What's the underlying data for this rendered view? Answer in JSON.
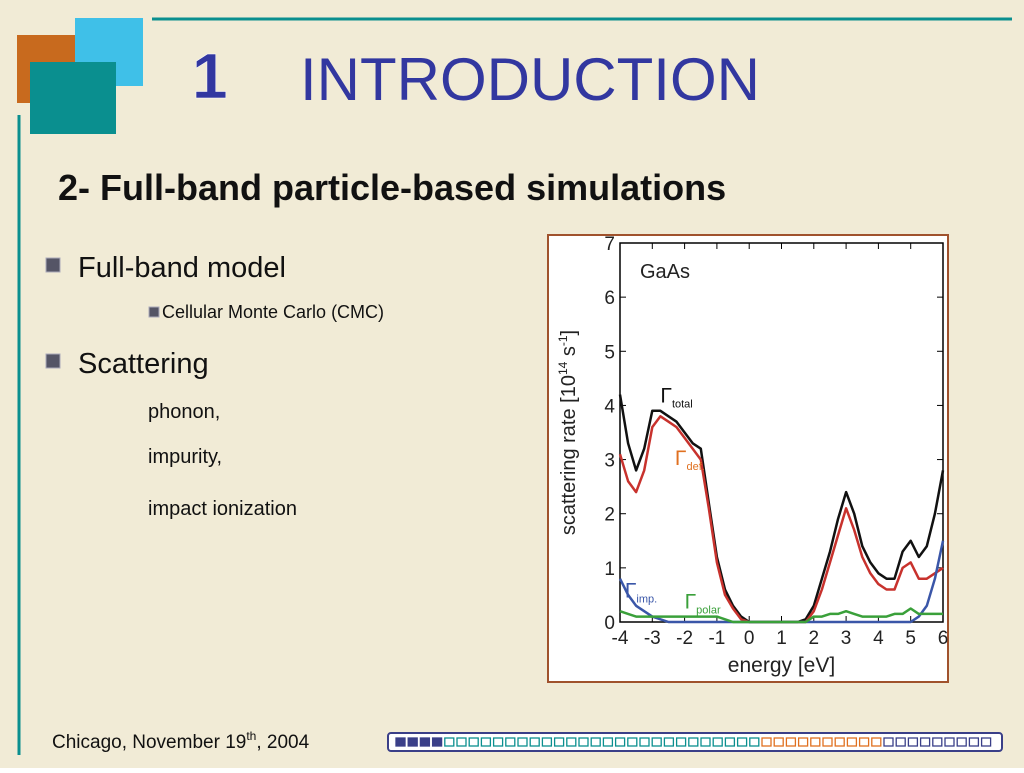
{
  "slide": {
    "number": "1",
    "title": "INTRODUCTION",
    "subtitle": "2- Full-band particle-based simulations",
    "bullets": [
      {
        "text": "Full-band model",
        "sub": [
          "Cellular Monte Carlo (CMC)"
        ]
      },
      {
        "text": "Scattering",
        "sub": [
          "phonon,",
          "impurity,",
          "impact ionization"
        ]
      }
    ],
    "footer": {
      "text": "Chicago, November 19",
      "sup": "th",
      "tail": ", 2004"
    }
  },
  "chart_data": {
    "type": "line",
    "title": "GaAs",
    "xlabel": "energy [eV]",
    "ylabel": [
      "scattering rate [10",
      "14",
      " s",
      "-1",
      "]"
    ],
    "symbol": "Γ",
    "x": [
      -4,
      -3.75,
      -3.5,
      -3.25,
      -3,
      -2.75,
      -2.5,
      -2.25,
      -2,
      -1.75,
      -1.5,
      -1.25,
      -1,
      -0.75,
      -0.5,
      -0.25,
      0,
      0.25,
      0.5,
      0.75,
      1,
      1.25,
      1.5,
      1.75,
      2,
      2.25,
      2.5,
      2.75,
      3,
      3.25,
      3.5,
      3.75,
      4,
      4.25,
      4.5,
      4.75,
      5,
      5.25,
      5.5,
      5.75,
      6
    ],
    "series": [
      {
        "name": "total",
        "color": "#111111",
        "values": [
          4.2,
          3.3,
          2.8,
          3.2,
          3.9,
          3.9,
          3.8,
          3.7,
          3.5,
          3.3,
          3.2,
          2.2,
          1.2,
          0.6,
          0.3,
          0.1,
          0,
          0,
          0,
          0,
          0,
          0,
          0,
          0.05,
          0.3,
          0.8,
          1.3,
          1.9,
          2.4,
          2.0,
          1.4,
          1.1,
          0.9,
          0.8,
          0.8,
          1.3,
          1.5,
          1.2,
          1.4,
          2.0,
          2.8
        ]
      },
      {
        "name": "def.",
        "color": "#c8322d",
        "values": [
          3.1,
          2.6,
          2.4,
          2.8,
          3.6,
          3.8,
          3.7,
          3.6,
          3.4,
          3.2,
          3.0,
          2.1,
          1.1,
          0.5,
          0.25,
          0.05,
          0,
          0,
          0,
          0,
          0,
          0,
          0,
          0,
          0.2,
          0.6,
          1.1,
          1.6,
          2.1,
          1.7,
          1.2,
          0.9,
          0.7,
          0.6,
          0.6,
          1.0,
          1.1,
          0.8,
          0.8,
          0.9,
          1.0
        ]
      },
      {
        "name": "imp.",
        "color": "#3a56a8",
        "values": [
          0.8,
          0.5,
          0.3,
          0.2,
          0.1,
          0.05,
          0,
          0,
          0,
          0,
          0,
          0,
          0,
          0,
          0,
          0,
          0,
          0,
          0,
          0,
          0,
          0,
          0,
          0,
          0,
          0,
          0,
          0,
          0,
          0,
          0,
          0,
          0,
          0,
          0,
          0,
          0,
          0.1,
          0.3,
          0.8,
          1.5
        ]
      },
      {
        "name": "polar",
        "color": "#3aa03a",
        "values": [
          0.2,
          0.15,
          0.1,
          0.1,
          0.1,
          0.1,
          0.1,
          0.1,
          0.1,
          0.1,
          0.1,
          0.1,
          0.1,
          0.05,
          0,
          0,
          0,
          0,
          0,
          0,
          0,
          0,
          0,
          0,
          0.1,
          0.1,
          0.15,
          0.15,
          0.2,
          0.15,
          0.1,
          0.1,
          0.1,
          0.1,
          0.15,
          0.15,
          0.25,
          0.15,
          0.15,
          0.15,
          0.15
        ]
      }
    ],
    "xlim": [
      -4,
      6
    ],
    "xticks": [
      -4,
      -3,
      -2,
      -1,
      0,
      1,
      2,
      3,
      4,
      5,
      6
    ],
    "ylim": [
      0,
      7
    ],
    "yticks": [
      0,
      1,
      2,
      3,
      4,
      5,
      6,
      7
    ]
  }
}
